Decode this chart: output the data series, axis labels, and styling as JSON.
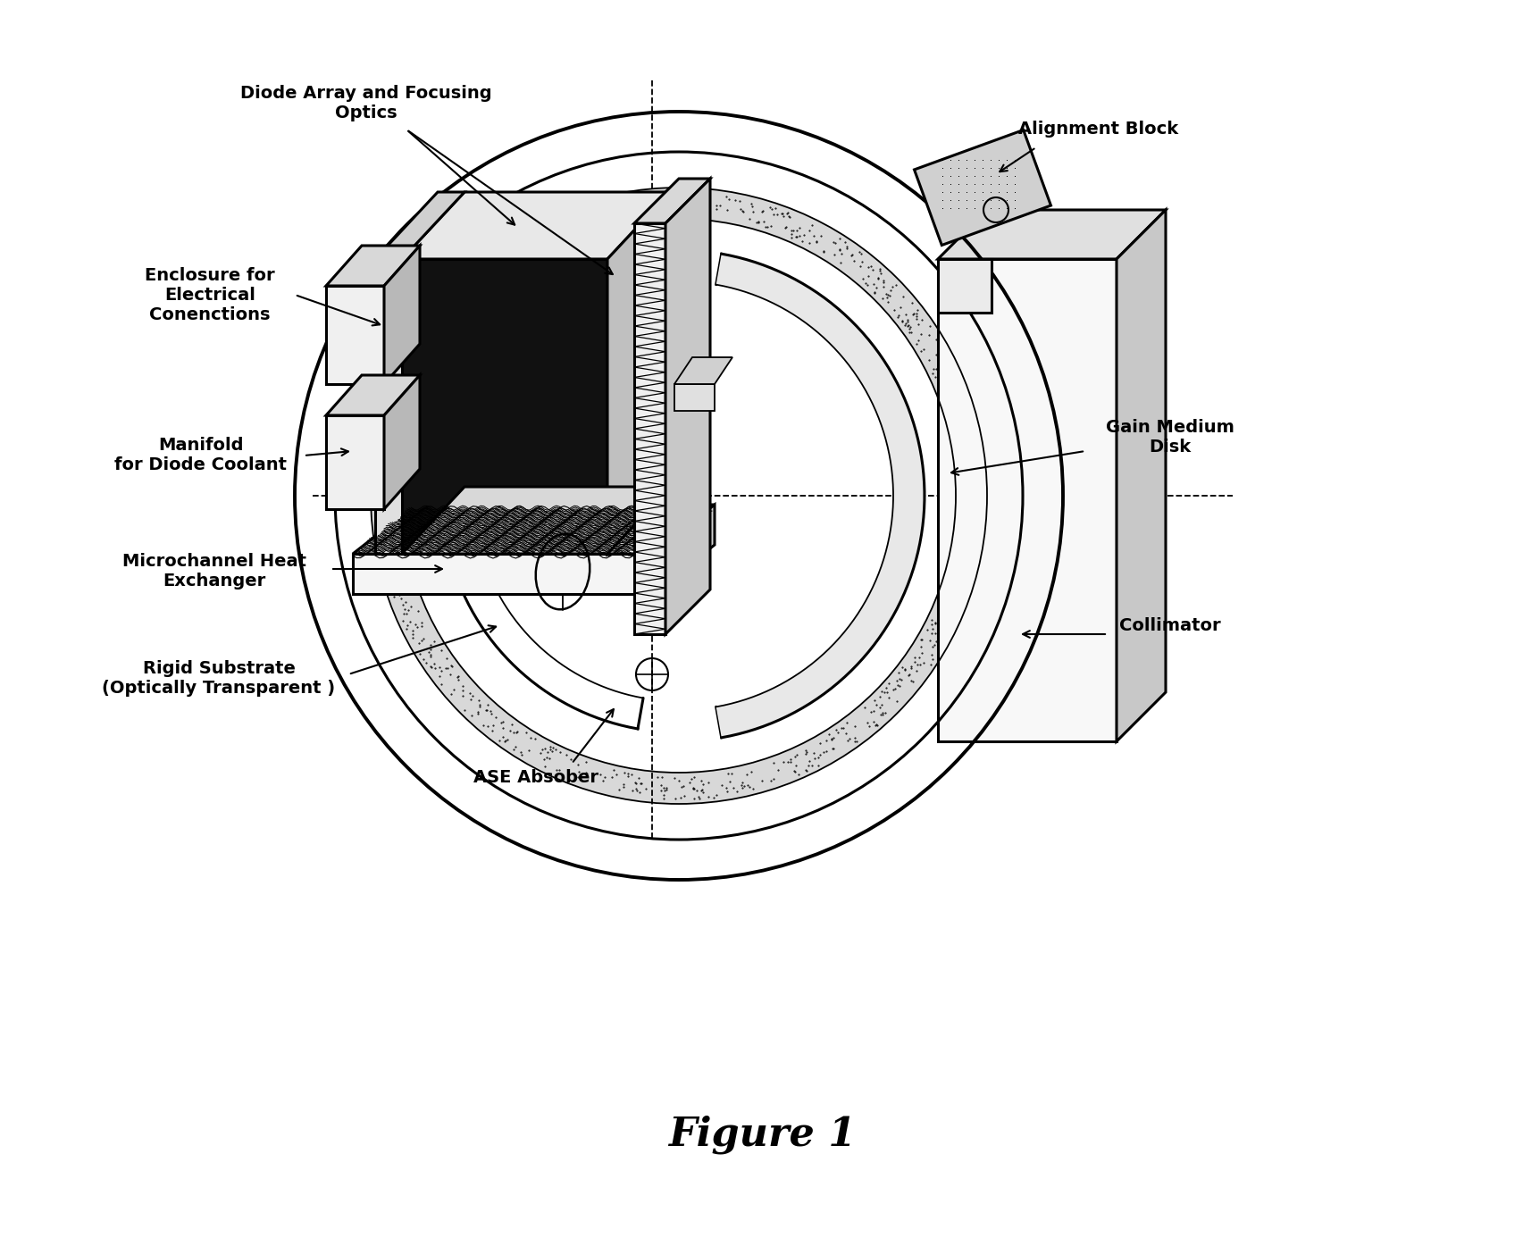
{
  "title": "Figure 1",
  "title_fontsize": 32,
  "background_color": "#ffffff",
  "labels": {
    "diode_array": "Diode Array and Focusing\nOptics",
    "enclosure": "Enclosure for\nElectrical\nConenctions",
    "manifold": "Manifold\nfor Diode Coolant",
    "microchannel": "Microchannel Heat\nExchanger",
    "rigid_substrate": "Rigid Substrate\n(Optically Transparent )",
    "ase_absorber": "ASE Absober",
    "alignment_block": "Alignment Block",
    "gain_medium": "Gain Medium\nDisk",
    "collimator": "Collimator"
  },
  "label_fontsize": 14,
  "lw_main": 2.2,
  "lw_thin": 1.3,
  "lw_thick": 2.8
}
